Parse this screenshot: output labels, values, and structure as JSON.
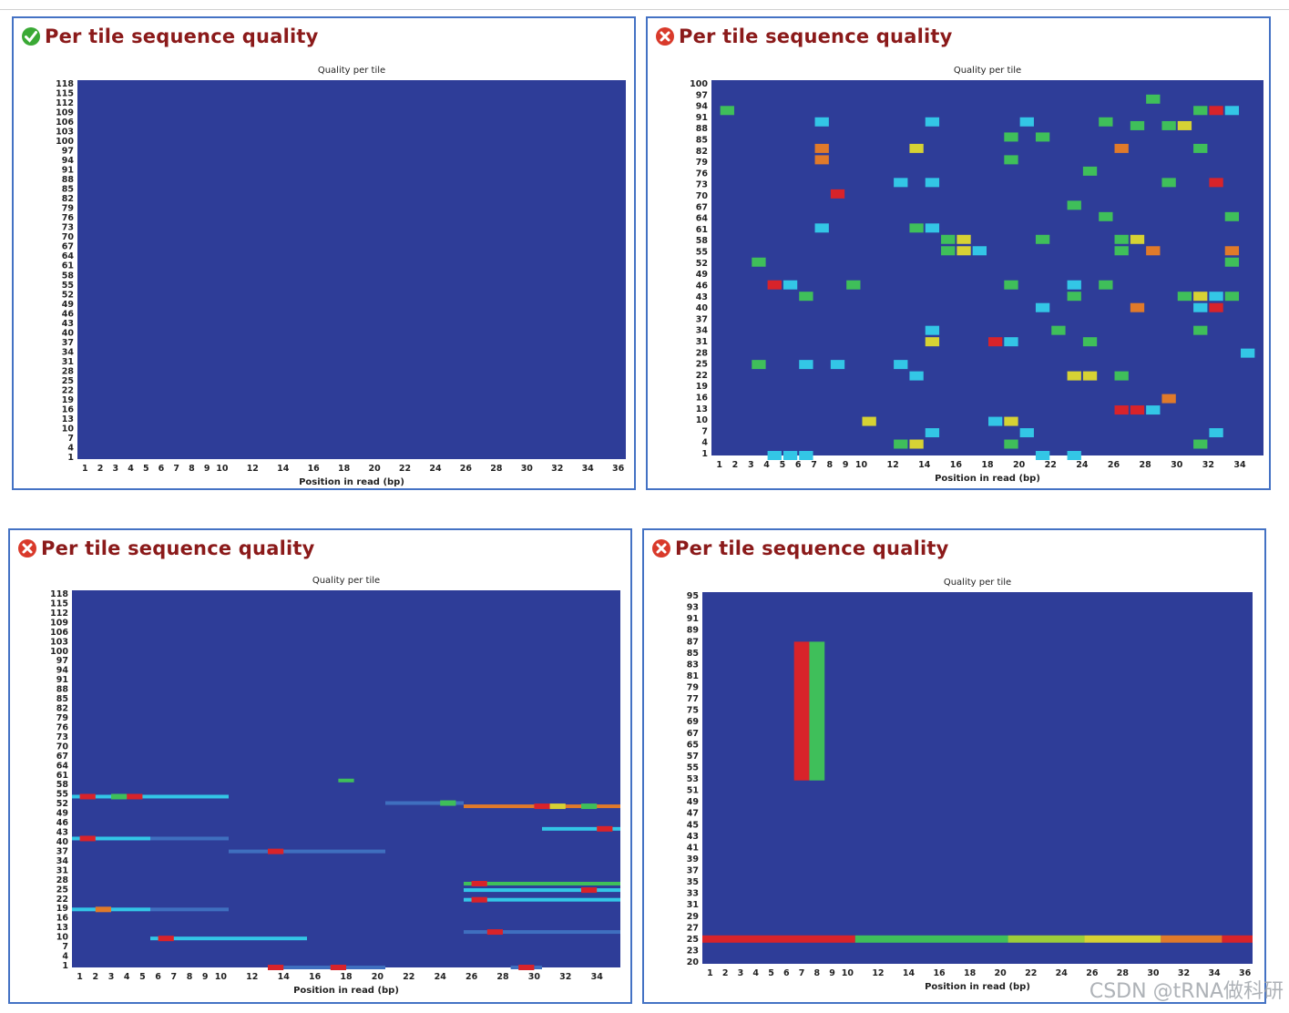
{
  "colors": {
    "border": "#4472c4",
    "heat_bg": "#2e3d98",
    "title": "#8b1a1a",
    "pass": "#3aa935",
    "fail": "#d93a2b"
  },
  "scale": {
    "note_levels": [
      "blue",
      "cyan",
      "green",
      "yellow",
      "orange",
      "red"
    ]
  },
  "watermark": "CSDN @tRNA做科研",
  "panels": [
    {
      "title": "Per tile sequence quality",
      "status": "pass",
      "status_icon": "check-circle-icon"
    },
    {
      "title": "Per tile sequence quality",
      "status": "fail",
      "status_icon": "cross-circle-icon"
    },
    {
      "title": "Per tile sequence quality",
      "status": "fail",
      "status_icon": "cross-circle-icon"
    },
    {
      "title": "Per tile sequence quality",
      "status": "fail",
      "status_icon": "cross-circle-icon"
    }
  ],
  "chart_data": [
    {
      "type": "heatmap",
      "title": "Quality per tile",
      "xlabel": "Position in read (bp)",
      "x_ticks": [
        "1",
        "2",
        "3",
        "4",
        "5",
        "6",
        "7",
        "8",
        "9",
        "10",
        "12",
        "14",
        "16",
        "18",
        "20",
        "22",
        "24",
        "26",
        "28",
        "30",
        "32",
        "34",
        "36"
      ],
      "y_ticks": [
        "1",
        "4",
        "7",
        "10",
        "13",
        "16",
        "19",
        "22",
        "25",
        "28",
        "31",
        "34",
        "37",
        "40",
        "43",
        "46",
        "49",
        "52",
        "55",
        "58",
        "61",
        "64",
        "67",
        "70",
        "73",
        "76",
        "79",
        "82",
        "85",
        "88",
        "91",
        "94",
        "97",
        "100",
        "103",
        "106",
        "109",
        "112",
        "115",
        "118"
      ],
      "x_range": [
        1,
        37
      ],
      "y_range": [
        1,
        118
      ],
      "cells": []
    },
    {
      "type": "heatmap",
      "title": "Quality per tile",
      "xlabel": "Position in read (bp)",
      "x_ticks": [
        "1",
        "2",
        "3",
        "4",
        "5",
        "6",
        "7",
        "8",
        "9",
        "10",
        "12",
        "14",
        "16",
        "18",
        "20",
        "22",
        "24",
        "26",
        "28",
        "30",
        "32",
        "34"
      ],
      "y_ticks": [
        "1",
        "4",
        "7",
        "10",
        "13",
        "16",
        "19",
        "22",
        "25",
        "28",
        "31",
        "34",
        "37",
        "40",
        "43",
        "46",
        "49",
        "52",
        "55",
        "58",
        "61",
        "64",
        "67",
        "70",
        "73",
        "76",
        "79",
        "82",
        "85",
        "88",
        "91",
        "94",
        "97",
        "100"
      ],
      "x_range": [
        1,
        36
      ],
      "y_range": [
        1,
        100
      ],
      "cells": [
        {
          "x": 2,
          "y": 92,
          "level": "green"
        },
        {
          "x": 8,
          "y": 89,
          "level": "cyan"
        },
        {
          "x": 15,
          "y": 89,
          "level": "cyan"
        },
        {
          "x": 21,
          "y": 89,
          "level": "cyan"
        },
        {
          "x": 26,
          "y": 89,
          "level": "green"
        },
        {
          "x": 29,
          "y": 95,
          "level": "green"
        },
        {
          "x": 32,
          "y": 92,
          "level": "green"
        },
        {
          "x": 33,
          "y": 92,
          "level": "red"
        },
        {
          "x": 34,
          "y": 92,
          "level": "cyan"
        },
        {
          "x": 8,
          "y": 82,
          "level": "orange"
        },
        {
          "x": 8,
          "y": 79,
          "level": "orange"
        },
        {
          "x": 14,
          "y": 82,
          "level": "yellow"
        },
        {
          "x": 20,
          "y": 85,
          "level": "green"
        },
        {
          "x": 22,
          "y": 85,
          "level": "green"
        },
        {
          "x": 27,
          "y": 82,
          "level": "orange"
        },
        {
          "x": 30,
          "y": 88,
          "level": "green"
        },
        {
          "x": 32,
          "y": 82,
          "level": "green"
        },
        {
          "x": 31,
          "y": 88,
          "level": "yellow"
        },
        {
          "x": 28,
          "y": 88,
          "level": "green"
        },
        {
          "x": 20,
          "y": 79,
          "level": "green"
        },
        {
          "x": 25,
          "y": 76,
          "level": "green"
        },
        {
          "x": 33,
          "y": 73,
          "level": "red"
        },
        {
          "x": 13,
          "y": 73,
          "level": "cyan"
        },
        {
          "x": 15,
          "y": 73,
          "level": "cyan"
        },
        {
          "x": 9,
          "y": 70,
          "level": "red"
        },
        {
          "x": 24,
          "y": 67,
          "level": "green"
        },
        {
          "x": 30,
          "y": 73,
          "level": "green"
        },
        {
          "x": 8,
          "y": 61,
          "level": "cyan"
        },
        {
          "x": 14,
          "y": 61,
          "level": "green"
        },
        {
          "x": 15,
          "y": 61,
          "level": "cyan"
        },
        {
          "x": 16,
          "y": 58,
          "level": "green"
        },
        {
          "x": 17,
          "y": 58,
          "level": "yellow"
        },
        {
          "x": 22,
          "y": 58,
          "level": "green"
        },
        {
          "x": 26,
          "y": 64,
          "level": "green"
        },
        {
          "x": 27,
          "y": 58,
          "level": "green"
        },
        {
          "x": 28,
          "y": 58,
          "level": "yellow"
        },
        {
          "x": 34,
          "y": 64,
          "level": "green"
        },
        {
          "x": 34,
          "y": 55,
          "level": "orange"
        },
        {
          "x": 16,
          "y": 55,
          "level": "green"
        },
        {
          "x": 17,
          "y": 55,
          "level": "yellow"
        },
        {
          "x": 18,
          "y": 55,
          "level": "cyan"
        },
        {
          "x": 4,
          "y": 52,
          "level": "green"
        },
        {
          "x": 27,
          "y": 55,
          "level": "green"
        },
        {
          "x": 29,
          "y": 55,
          "level": "orange"
        },
        {
          "x": 34,
          "y": 52,
          "level": "green"
        },
        {
          "x": 5,
          "y": 46,
          "level": "red"
        },
        {
          "x": 6,
          "y": 46,
          "level": "cyan"
        },
        {
          "x": 7,
          "y": 43,
          "level": "green"
        },
        {
          "x": 10,
          "y": 46,
          "level": "green"
        },
        {
          "x": 20,
          "y": 46,
          "level": "green"
        },
        {
          "x": 24,
          "y": 46,
          "level": "cyan"
        },
        {
          "x": 24,
          "y": 43,
          "level": "green"
        },
        {
          "x": 26,
          "y": 46,
          "level": "green"
        },
        {
          "x": 31,
          "y": 43,
          "level": "green"
        },
        {
          "x": 32,
          "y": 43,
          "level": "yellow"
        },
        {
          "x": 33,
          "y": 43,
          "level": "cyan"
        },
        {
          "x": 34,
          "y": 43,
          "level": "green"
        },
        {
          "x": 22,
          "y": 40,
          "level": "cyan"
        },
        {
          "x": 28,
          "y": 40,
          "level": "orange"
        },
        {
          "x": 32,
          "y": 40,
          "level": "cyan"
        },
        {
          "x": 33,
          "y": 40,
          "level": "red"
        },
        {
          "x": 15,
          "y": 34,
          "level": "cyan"
        },
        {
          "x": 15,
          "y": 31,
          "level": "yellow"
        },
        {
          "x": 19,
          "y": 31,
          "level": "red"
        },
        {
          "x": 20,
          "y": 31,
          "level": "cyan"
        },
        {
          "x": 23,
          "y": 34,
          "level": "green"
        },
        {
          "x": 25,
          "y": 31,
          "level": "green"
        },
        {
          "x": 32,
          "y": 34,
          "level": "green"
        },
        {
          "x": 4,
          "y": 25,
          "level": "green"
        },
        {
          "x": 7,
          "y": 25,
          "level": "cyan"
        },
        {
          "x": 9,
          "y": 25,
          "level": "cyan"
        },
        {
          "x": 13,
          "y": 25,
          "level": "cyan"
        },
        {
          "x": 14,
          "y": 22,
          "level": "cyan"
        },
        {
          "x": 24,
          "y": 22,
          "level": "yellow"
        },
        {
          "x": 25,
          "y": 22,
          "level": "yellow"
        },
        {
          "x": 27,
          "y": 22,
          "level": "green"
        },
        {
          "x": 35,
          "y": 28,
          "level": "cyan"
        },
        {
          "x": 27,
          "y": 13,
          "level": "red"
        },
        {
          "x": 28,
          "y": 13,
          "level": "red"
        },
        {
          "x": 29,
          "y": 13,
          "level": "cyan"
        },
        {
          "x": 30,
          "y": 16,
          "level": "orange"
        },
        {
          "x": 11,
          "y": 10,
          "level": "yellow"
        },
        {
          "x": 19,
          "y": 10,
          "level": "cyan"
        },
        {
          "x": 20,
          "y": 10,
          "level": "yellow"
        },
        {
          "x": 21,
          "y": 7,
          "level": "cyan"
        },
        {
          "x": 13,
          "y": 4,
          "level": "green"
        },
        {
          "x": 14,
          "y": 4,
          "level": "yellow"
        },
        {
          "x": 15,
          "y": 7,
          "level": "cyan"
        },
        {
          "x": 5,
          "y": 1,
          "level": "cyan"
        },
        {
          "x": 6,
          "y": 1,
          "level": "cyan"
        },
        {
          "x": 7,
          "y": 1,
          "level": "cyan"
        },
        {
          "x": 20,
          "y": 4,
          "level": "green"
        },
        {
          "x": 22,
          "y": 1,
          "level": "cyan"
        },
        {
          "x": 24,
          "y": 1,
          "level": "cyan"
        },
        {
          "x": 32,
          "y": 4,
          "level": "green"
        },
        {
          "x": 33,
          "y": 7,
          "level": "cyan"
        }
      ]
    },
    {
      "type": "heatmap",
      "title": "Quality per tile",
      "xlabel": "Position in read (bp)",
      "x_ticks": [
        "1",
        "2",
        "3",
        "4",
        "5",
        "6",
        "7",
        "8",
        "9",
        "10",
        "12",
        "14",
        "16",
        "18",
        "20",
        "22",
        "24",
        "26",
        "28",
        "30",
        "32",
        "34"
      ],
      "y_ticks": [
        "1",
        "4",
        "7",
        "10",
        "13",
        "16",
        "19",
        "22",
        "25",
        "28",
        "31",
        "34",
        "37",
        "40",
        "43",
        "46",
        "49",
        "52",
        "55",
        "58",
        "61",
        "64",
        "67",
        "70",
        "73",
        "76",
        "79",
        "82",
        "85",
        "88",
        "91",
        "94",
        "97",
        "100",
        "103",
        "106",
        "109",
        "112",
        "115",
        "118"
      ],
      "x_range": [
        1,
        36
      ],
      "y_range": [
        1,
        118
      ],
      "bands": [
        {
          "y": 54,
          "x0": 1,
          "x1": 11,
          "level": "cyan",
          "hot": [
            {
              "x": 2,
              "level": "red"
            },
            {
              "x": 4,
              "level": "green"
            },
            {
              "x": 5,
              "level": "red"
            }
          ]
        },
        {
          "y": 41,
          "x0": 1,
          "x1": 6,
          "level": "cyan",
          "hot": [
            {
              "x": 2,
              "level": "red"
            }
          ]
        },
        {
          "y": 41,
          "x0": 6,
          "x1": 11,
          "level": "teal"
        },
        {
          "y": 37,
          "x0": 11,
          "x1": 21,
          "level": "teal",
          "hot": [
            {
              "x": 14,
              "level": "red"
            }
          ]
        },
        {
          "y": 19,
          "x0": 1,
          "x1": 6,
          "level": "cyan",
          "hot": [
            {
              "x": 3,
              "level": "orange"
            }
          ]
        },
        {
          "y": 19,
          "x0": 6,
          "x1": 11,
          "level": "teal"
        },
        {
          "y": 10,
          "x0": 6,
          "x1": 16,
          "level": "cyan",
          "hot": [
            {
              "x": 7,
              "level": "red"
            }
          ]
        },
        {
          "y": 59,
          "x0": 18,
          "x1": 19,
          "level": "green"
        },
        {
          "y": 52,
          "x0": 21,
          "x1": 26,
          "level": "teal",
          "hot": [
            {
              "x": 25,
              "level": "green"
            }
          ]
        },
        {
          "y": 51,
          "x0": 26,
          "x1": 36,
          "level": "orange",
          "hot": [
            {
              "x": 31,
              "level": "red"
            },
            {
              "x": 32,
              "level": "yellow"
            },
            {
              "x": 34,
              "level": "green"
            }
          ]
        },
        {
          "y": 44,
          "x0": 31,
          "x1": 36,
          "level": "cyan",
          "hot": [
            {
              "x": 35,
              "level": "red"
            }
          ]
        },
        {
          "y": 27,
          "x0": 26,
          "x1": 36,
          "level": "green",
          "hot": [
            {
              "x": 27,
              "level": "red"
            }
          ]
        },
        {
          "y": 25,
          "x0": 26,
          "x1": 36,
          "level": "cyan",
          "hot": [
            {
              "x": 34,
              "level": "red"
            }
          ]
        },
        {
          "y": 22,
          "x0": 26,
          "x1": 36,
          "level": "cyan",
          "hot": [
            {
              "x": 27,
              "level": "red"
            }
          ]
        },
        {
          "y": 12,
          "x0": 26,
          "x1": 36,
          "level": "teal",
          "hot": [
            {
              "x": 28,
              "level": "red"
            }
          ]
        },
        {
          "y": 1,
          "x0": 14,
          "x1": 21,
          "level": "teal",
          "hot": [
            {
              "x": 14,
              "level": "red"
            },
            {
              "x": 18,
              "level": "red"
            }
          ]
        },
        {
          "y": 1,
          "x0": 29,
          "x1": 31,
          "level": "teal",
          "hot": [
            {
              "x": 30,
              "level": "red"
            }
          ]
        }
      ]
    },
    {
      "type": "heatmap",
      "title": "Quality per tile",
      "xlabel": "Position in read (bp)",
      "x_ticks": [
        "1",
        "2",
        "3",
        "4",
        "5",
        "6",
        "7",
        "8",
        "9",
        "10",
        "12",
        "14",
        "16",
        "18",
        "20",
        "22",
        "24",
        "26",
        "28",
        "30",
        "32",
        "34",
        "36"
      ],
      "y_ticks": [
        "20",
        "23",
        "25",
        "27",
        "29",
        "31",
        "33",
        "35",
        "37",
        "39",
        "41",
        "43",
        "45",
        "47",
        "49",
        "51",
        "53",
        "55",
        "57",
        "65",
        "67",
        "69",
        "75",
        "77",
        "79",
        "81",
        "83",
        "85",
        "87",
        "89",
        "91",
        "93",
        "95"
      ],
      "x_range": [
        1,
        37
      ],
      "y_range": [
        20,
        95
      ],
      "blocks": [
        {
          "x0": 7,
          "x1": 8,
          "y0": 57,
          "y1": 85,
          "level": "red"
        },
        {
          "x0": 8,
          "x1": 9,
          "y0": 57,
          "y1": 85,
          "level": "green"
        }
      ],
      "band": {
        "y": 25,
        "segments": [
          {
            "x0": 1,
            "x1": 11,
            "level": "red"
          },
          {
            "x0": 11,
            "x1": 21,
            "level": "green"
          },
          {
            "x0": 21,
            "x1": 26,
            "level": "yellowgreen"
          },
          {
            "x0": 26,
            "x1": 31,
            "level": "yellow"
          },
          {
            "x0": 31,
            "x1": 35,
            "level": "orange"
          },
          {
            "x0": 35,
            "x1": 37,
            "level": "red"
          }
        ]
      }
    }
  ]
}
